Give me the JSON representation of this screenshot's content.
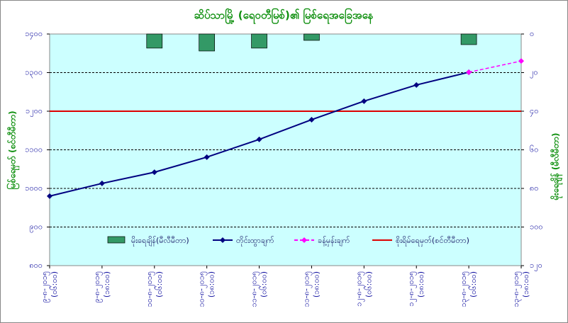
{
  "chart_data": {
    "type": "line",
    "title": "ဆိပ်သာမြို့ (ရေဝတီမြစ်)၏ မြစ်ရေအခြေအနေ",
    "ylabel": "မြစ်ရေမှတ် (စင်တီမီတာ)",
    "y2label": "မိုးရေချိန် (မီလီမီတာ)",
    "categories": [
      "၉-၈-၂၀၁၅ (၀၆:၀၀)",
      "၉-၈-၂၀၁၅ (၁၈:၀၀)",
      "၁၀-၈-၂၀၁၅ (၀၆:၀၀)",
      "၁၀-၈-၂၀၁၅ (၁၈:၀၀)",
      "၁၁-၈-၂၀၁၅ (၀၆:၀၀)",
      "၁၁-၈-၂၀၁၅ (၁၈:၀၀)",
      "၁၂-၈-၂၀၁၅ (၀၆:၀၀)",
      "၁၂-၈-၂၀၁၅ (၁၈:၀၀)",
      "၁၃-၈-၂၀၁၅ (၀၆:၀၀)",
      "၁၃-၈-၂၀၁၅ (၁၈:၀၀)"
    ],
    "ylim": [
      800,
      1400
    ],
    "yticks": [
      {
        "value": 800,
        "label": "၈၀၀"
      },
      {
        "value": 900,
        "label": "၉၀၀"
      },
      {
        "value": 1000,
        "label": "၁၀၀၀"
      },
      {
        "value": 1100,
        "label": "၁၁၀၀"
      },
      {
        "value": 1200,
        "label": "၁၂၀၀"
      },
      {
        "value": 1300,
        "label": "၁၃၀၀"
      },
      {
        "value": 1400,
        "label": "၁၄၀၀"
      }
    ],
    "y2lim": [
      0,
      120
    ],
    "y2_inverted": true,
    "y2ticks": [
      {
        "value": 0,
        "label": "၀"
      },
      {
        "value": 20,
        "label": "၂၀"
      },
      {
        "value": 40,
        "label": "၄၀"
      },
      {
        "value": 60,
        "label": "၆၀"
      },
      {
        "value": 80,
        "label": "၈၀"
      },
      {
        "value": 100,
        "label": "၁၀၀"
      },
      {
        "value": 120,
        "label": "၁၂၀"
      }
    ],
    "grid": true,
    "series": [
      {
        "name": "မိုးရေချိန်(မီလီမီတာ)",
        "kind": "bar",
        "axis": "y2",
        "color": "#339966",
        "values": [
          0,
          0,
          7.3,
          8.8,
          7.3,
          3.3,
          0,
          0,
          5.5,
          0
        ]
      },
      {
        "name": "တိုင်းထွာချက်",
        "kind": "line",
        "color": "#000080",
        "values": [
          980,
          1013,
          1042,
          1081,
          1127,
          1178,
          1226,
          1268,
          1301,
          null
        ]
      },
      {
        "name": "ခန့်မှန်းချက်",
        "kind": "dashed",
        "color": "#ff00ff",
        "values": [
          null,
          null,
          null,
          null,
          null,
          null,
          null,
          null,
          1301,
          1330
        ]
      }
    ],
    "reference_line": {
      "name": "စိုးရိမ်ရေမှတ်(စင်တီမီတာ)",
      "value": 1200,
      "color": "#dd0000"
    }
  }
}
